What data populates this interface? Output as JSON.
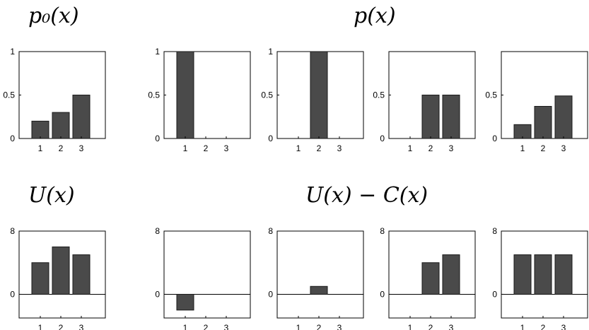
{
  "labels": {
    "top_left": "p₀(x)",
    "top_right": "p(x)",
    "bottom_left": "U(x)",
    "bottom_right": "U(x) − C(x)"
  },
  "chart_data": [
    {
      "type": "bar",
      "row": "top",
      "title": "p₀(x)",
      "categories": [
        "1",
        "2",
        "3"
      ],
      "values": [
        0.2,
        0.3,
        0.5
      ],
      "ylim": [
        0,
        1
      ],
      "yticks": [
        "0",
        "0.5",
        "1"
      ],
      "bar_color": "#4a4a4a"
    },
    {
      "type": "bar",
      "row": "top",
      "title": "p(x)",
      "categories": [
        "1",
        "2",
        "3"
      ],
      "values": [
        1.0,
        0,
        0
      ],
      "ylim": [
        0,
        1
      ],
      "yticks": [
        "0",
        "0.5",
        "1"
      ],
      "bar_color": "#4a4a4a"
    },
    {
      "type": "bar",
      "row": "top",
      "title": "p(x)",
      "categories": [
        "1",
        "2",
        "3"
      ],
      "values": [
        0,
        1.0,
        0
      ],
      "ylim": [
        0,
        1
      ],
      "yticks": [
        "0",
        "0.5",
        "1"
      ],
      "bar_color": "#4a4a4a"
    },
    {
      "type": "bar",
      "row": "top",
      "title": "p(x)",
      "categories": [
        "1",
        "2",
        "3"
      ],
      "values": [
        0,
        0.5,
        0.5
      ],
      "ylim": [
        0,
        1
      ],
      "yticks": [
        "0",
        "0.5"
      ],
      "bar_color": "#4a4a4a"
    },
    {
      "type": "bar",
      "row": "top",
      "title": "p(x)",
      "categories": [
        "1",
        "2",
        "3"
      ],
      "values": [
        0.16,
        0.37,
        0.49
      ],
      "ylim": [
        0,
        1
      ],
      "yticks": [
        "0",
        "0.5"
      ],
      "bar_color": "#4a4a4a"
    },
    {
      "type": "bar",
      "row": "bottom",
      "title": "U(x)",
      "categories": [
        "1",
        "2",
        "3"
      ],
      "values": [
        4.0,
        6.0,
        5.0
      ],
      "ylim": [
        -3,
        8
      ],
      "yticks": [
        "0",
        "8"
      ],
      "bar_color": "#4a4a4a"
    },
    {
      "type": "bar",
      "row": "bottom",
      "title": "U(x) − C(x)",
      "categories": [
        "1",
        "2",
        "3"
      ],
      "values": [
        -2.0,
        0,
        0
      ],
      "ylim": [
        -3,
        8
      ],
      "yticks": [
        "0",
        "8"
      ],
      "bar_color": "#4a4a4a"
    },
    {
      "type": "bar",
      "row": "bottom",
      "title": "U(x) − C(x)",
      "categories": [
        "1",
        "2",
        "3"
      ],
      "values": [
        0,
        1.0,
        0
      ],
      "ylim": [
        -3,
        8
      ],
      "yticks": [
        "0",
        "8"
      ],
      "bar_color": "#4a4a4a"
    },
    {
      "type": "bar",
      "row": "bottom",
      "title": "U(x) − C(x)",
      "categories": [
        "1",
        "2",
        "3"
      ],
      "values": [
        0,
        4.0,
        5.0
      ],
      "ylim": [
        -3,
        8
      ],
      "yticks": [
        "0",
        "8"
      ],
      "bar_color": "#4a4a4a"
    },
    {
      "type": "bar",
      "row": "bottom",
      "title": "U(x) − C(x)",
      "categories": [
        "1",
        "2",
        "3"
      ],
      "values": [
        5.0,
        5.0,
        5.0
      ],
      "ylim": [
        -3,
        8
      ],
      "yticks": [
        "0",
        "8"
      ],
      "bar_color": "#4a4a4a"
    }
  ]
}
